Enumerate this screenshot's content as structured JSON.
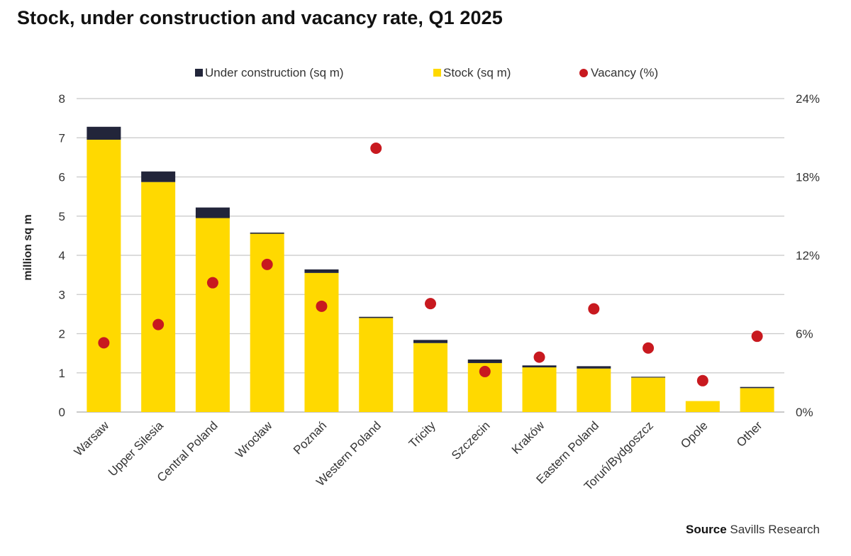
{
  "title": "Stock, under construction and vacancy rate, Q1 2025",
  "source_label": "Source",
  "source_text": "Savills Research",
  "colors": {
    "stock": "#ffd900",
    "under_construction": "#22253a",
    "vacancy": "#c8191f",
    "grid": "#c8c8c8",
    "text": "#333333"
  },
  "chart_data": {
    "type": "bar",
    "stacked": true,
    "categories": [
      "Warsaw",
      "Upper Silesia",
      "Central Poland",
      "Wrocław",
      "Poznań",
      "Western Poland",
      "Tricity",
      "Szczecin",
      "Kraków",
      "Eastern Poland",
      "Toruń/Bydgoszcz",
      "Opole",
      "Other"
    ],
    "series": [
      {
        "name": "Stock (sq m)",
        "axis": "left",
        "type": "bar",
        "values": [
          6.95,
          5.87,
          4.95,
          4.55,
          3.55,
          2.4,
          1.76,
          1.25,
          1.14,
          1.11,
          0.88,
          0.28,
          0.61
        ]
      },
      {
        "name": "Under construction (sq m)",
        "axis": "left",
        "type": "bar",
        "values": [
          0.33,
          0.27,
          0.27,
          0.03,
          0.09,
          0.03,
          0.08,
          0.09,
          0.05,
          0.06,
          0.02,
          0.0,
          0.03
        ]
      },
      {
        "name": "Vacancy (%)",
        "axis": "right",
        "type": "scatter",
        "values": [
          5.3,
          6.7,
          9.9,
          11.3,
          8.1,
          20.2,
          8.3,
          3.1,
          4.2,
          7.9,
          4.9,
          2.4,
          5.8
        ]
      }
    ],
    "legend": [
      "Under construction (sq m)",
      "Stock (sq m)",
      "Vacancy (%)"
    ],
    "ylabel": "million sq m",
    "ylim": [
      0,
      8
    ],
    "yticks": [
      "0",
      "1",
      "2",
      "3",
      "4",
      "5",
      "6",
      "7",
      "8"
    ],
    "y2lim": [
      0,
      24
    ],
    "y2ticks": [
      "0%",
      "6%",
      "12%",
      "18%",
      "24%"
    ],
    "legend_position": "top-center",
    "grid": true
  }
}
